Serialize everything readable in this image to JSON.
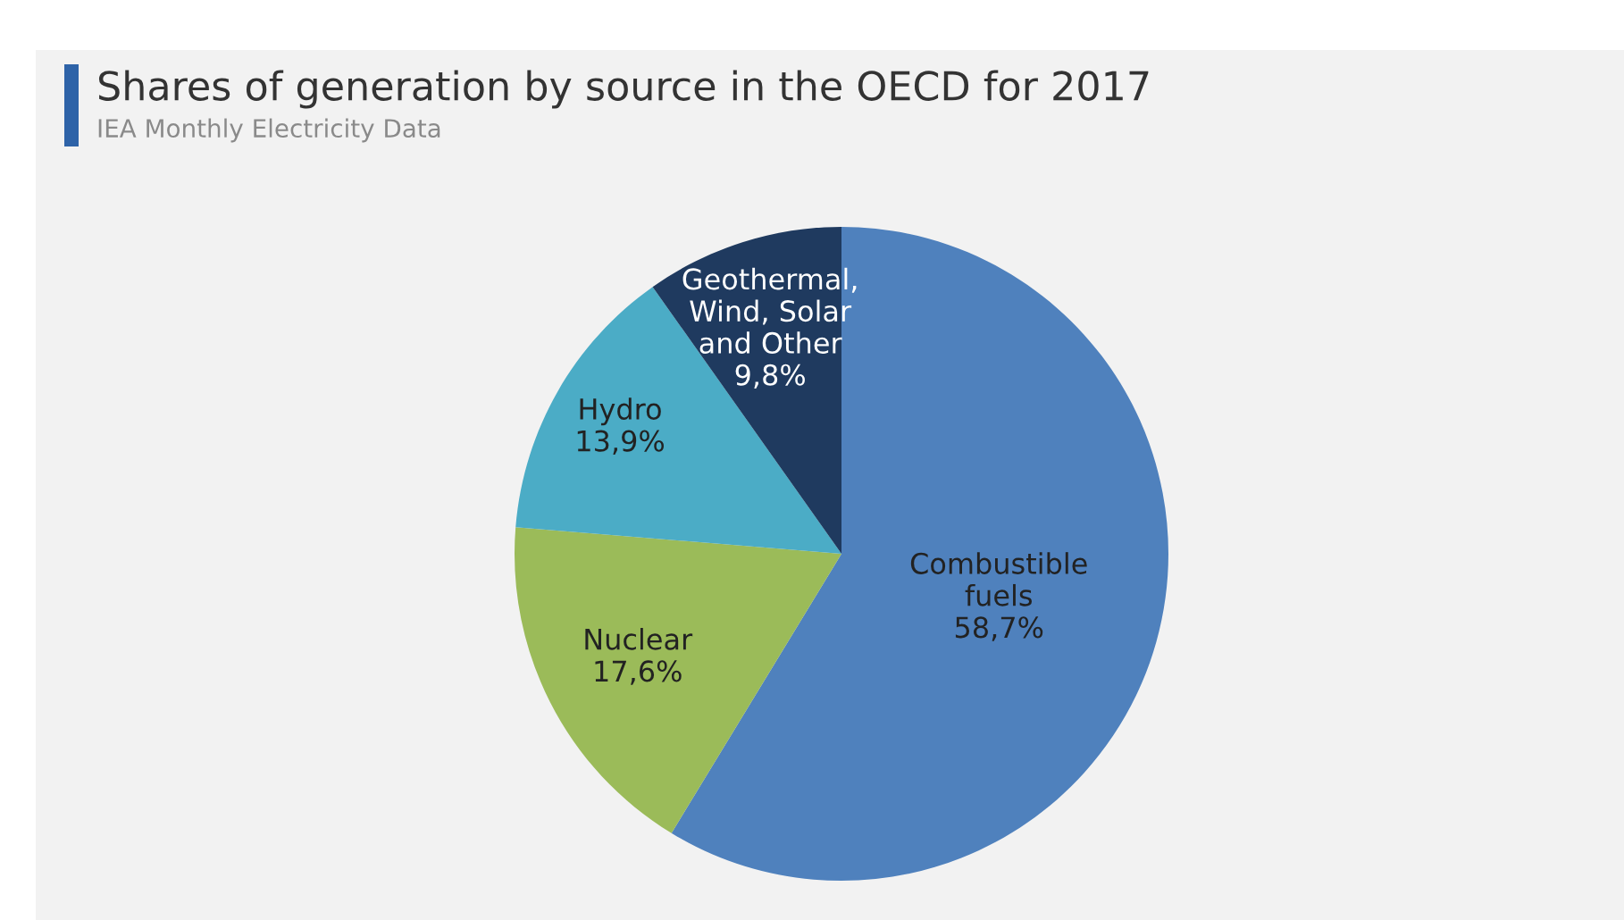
{
  "chart_data": {
    "type": "pie",
    "title": "Shares of generation by source in the OECD for 2017",
    "subtitle": "IEA Monthly Electricity Data",
    "categories": [
      "Combustible\nfuels",
      "Nuclear",
      "Hydro",
      "Geothermal,\nWind, Solar\nand Other"
    ],
    "values": [
      58.7,
      17.6,
      13.9,
      9.8
    ],
    "colors": [
      "#4f81bd",
      "#9bbb59",
      "#4bacc6",
      "#1f3a5f"
    ],
    "value_labels": [
      "58,7%",
      "17,6%",
      "13,9%",
      "9,8%"
    ]
  }
}
